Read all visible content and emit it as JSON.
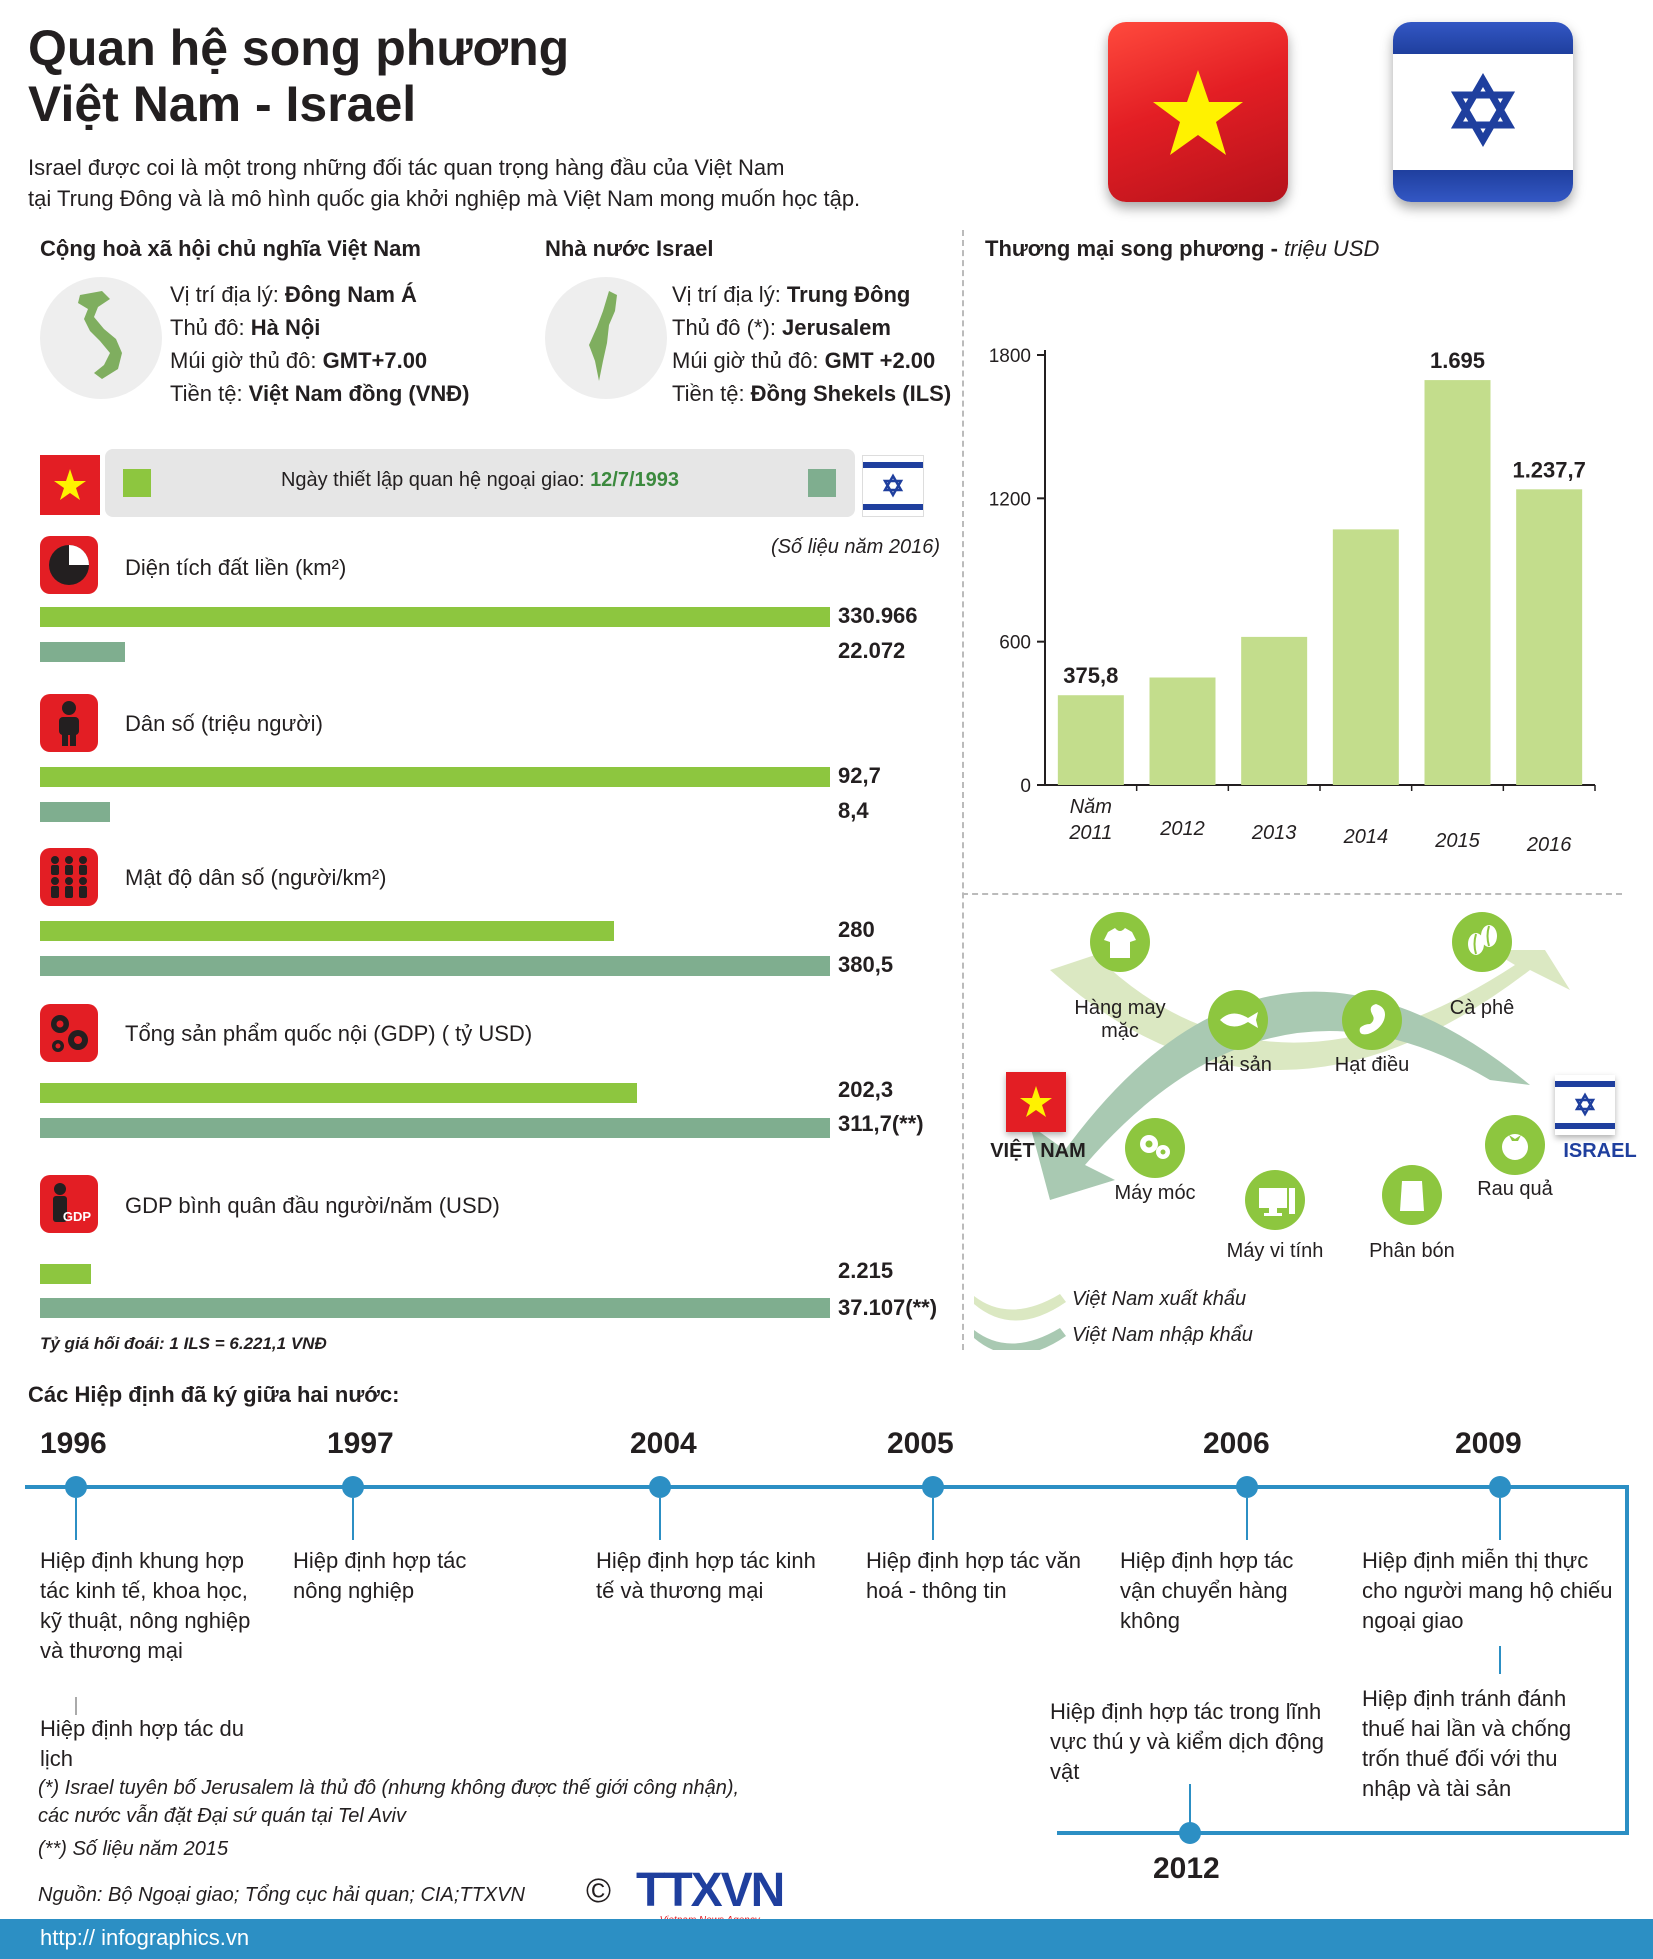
{
  "header": {
    "title_line1": "Quan hệ song phương",
    "title_line2": "Việt Nam - Israel",
    "intro_line1": "Israel được coi là một trong những đối tác quan trọng hàng đầu của Việt Nam",
    "intro_line2": "tại Trung Đông và là mô hình quốc gia khởi nghiệp mà Việt Nam mong muốn học tập."
  },
  "vietnam": {
    "heading": "Cộng hoà xã hội chủ nghĩa Việt Nam",
    "geo_label": "Vị trí địa lý: ",
    "geo_value": "Đông Nam Á",
    "capital_label": "Thủ đô: ",
    "capital_value": "Hà Nội",
    "tz_label": "Múi giờ thủ đô: ",
    "tz_value": "GMT+7.00",
    "cur_label": "Tiền tệ: ",
    "cur_value": "Việt Nam đồng (VNĐ)"
  },
  "israel": {
    "heading": "Nhà nước Israel",
    "geo_label": "Vị trí địa lý: ",
    "geo_value": "Trung Đông",
    "capital_label": "Thủ đô (*): ",
    "capital_value": "Jerusalem",
    "tz_label": "Múi giờ thủ đô: ",
    "tz_value": "GMT +2.00",
    "cur_label": "Tiền tệ: ",
    "cur_value": "Đồng Shekels (ILS)"
  },
  "diplomacy": {
    "label": "Ngày thiết lập quan hệ ngoại giao: ",
    "date": "12/7/1993",
    "note": "(Số liệu năm 2016)"
  },
  "stats": [
    {
      "label": "Diện tích đất liền (km²)",
      "vn": "330.966",
      "il": "22.072",
      "vn_frac": 1.0,
      "il_frac": 0.107
    },
    {
      "label": "Dân số (triệu người)",
      "vn": "92,7",
      "il": "8,4",
      "vn_frac": 1.0,
      "il_frac": 0.088
    },
    {
      "label": "Mật độ dân số (người/km²)",
      "vn": "280",
      "il": "380,5",
      "vn_frac": 0.726,
      "il_frac": 1.0
    },
    {
      "label": "Tổng sản phẩm quốc nội (GDP) ( tỷ USD)",
      "vn": "202,3",
      "il": "311,7(**)",
      "vn_frac": 0.756,
      "il_frac": 1.0
    },
    {
      "label": "GDP bình quân đầu người/năm (USD)",
      "vn": "2.215",
      "il": "37.107(**)",
      "vn_frac": 0.065,
      "il_frac": 1.0
    }
  ],
  "gdp_icon_text": "GDP",
  "exchange_rate": "Tỷ giá hối đoái: 1 ILS = 6.221,1 VNĐ",
  "chart_data": {
    "type": "bar",
    "title": "Thương mại song phương",
    "title_unit": "triệu USD",
    "categories": [
      "Năm 2011",
      "2012",
      "2013",
      "2014",
      "2015",
      "2016"
    ],
    "values": [
      375.8,
      450,
      620,
      1070,
      1695,
      1237.7
    ],
    "data_labels": [
      "375,8",
      "",
      "",
      "",
      "1.695",
      "1.237,7"
    ],
    "yticks": [
      "0",
      "600",
      "1200",
      "1800"
    ],
    "ylim": [
      0,
      1800
    ],
    "color": "#c3dd8c"
  },
  "trade": {
    "vn_label": "VIỆT NAM",
    "il_label": "ISRAEL",
    "exports": [
      "Hàng may mặc",
      "Hải sản",
      "Hạt điều",
      "Cà phê"
    ],
    "imports": [
      "Máy móc",
      "Máy vi tính",
      "Phân bón",
      "Rau quả"
    ],
    "legend_export": "Việt Nam xuất khẩu",
    "legend_import": "Việt Nam nhập khẩu"
  },
  "agreements": {
    "heading": "Các Hiệp định đã ký giữa hai nước:",
    "items": [
      {
        "year": "1996",
        "text": "Hiệp định khung hợp tác kinh tế, khoa học, kỹ thuật, nông nghiệp và thương mại",
        "text2": "Hiệp định hợp tác du lịch"
      },
      {
        "year": "1997",
        "text": "Hiệp định hợp tác nông nghiệp"
      },
      {
        "year": "2004",
        "text": "Hiệp định hợp tác kinh tế và thương mại"
      },
      {
        "year": "2005",
        "text": "Hiệp định hợp tác văn hoá - thông tin"
      },
      {
        "year": "2006",
        "text": "Hiệp định hợp tác vận chuyển hàng không"
      },
      {
        "year": "2009",
        "text": "Hiệp định miễn thị thực cho người mang hộ chiếu ngoại giao",
        "text2": "Hiệp định tránh đánh thuế hai lần và chống trốn thuế đối với thu nhập và tài sản"
      },
      {
        "year": "2012",
        "text": "Hiệp định hợp tác trong lĩnh vực thú y và kiểm dịch động vật"
      }
    ]
  },
  "footnotes": {
    "note1_line1": "(*) Israel tuyên bố Jerusalem là thủ đô (nhưng không được thế giới công nhận),",
    "note1_line2": "các nước vẫn đặt Đại sứ quán tại Tel Aviv",
    "note2": "(**) Số liệu năm 2015",
    "source": "Nguồn: Bộ Ngoại giao; Tổng cục hải quan; CIA;TTXVN",
    "copyright": "©",
    "logo": "TTXVN",
    "logo_sub": "Vietnam News Agency",
    "url": "http:// infographics.vn"
  },
  "colors": {
    "vn_bar": "#8dc63f",
    "il_bar": "#7fae8f",
    "accent_red": "#e31e24",
    "timeline_blue": "#2c8fc4",
    "israel_blue": "#1f3f9e"
  }
}
